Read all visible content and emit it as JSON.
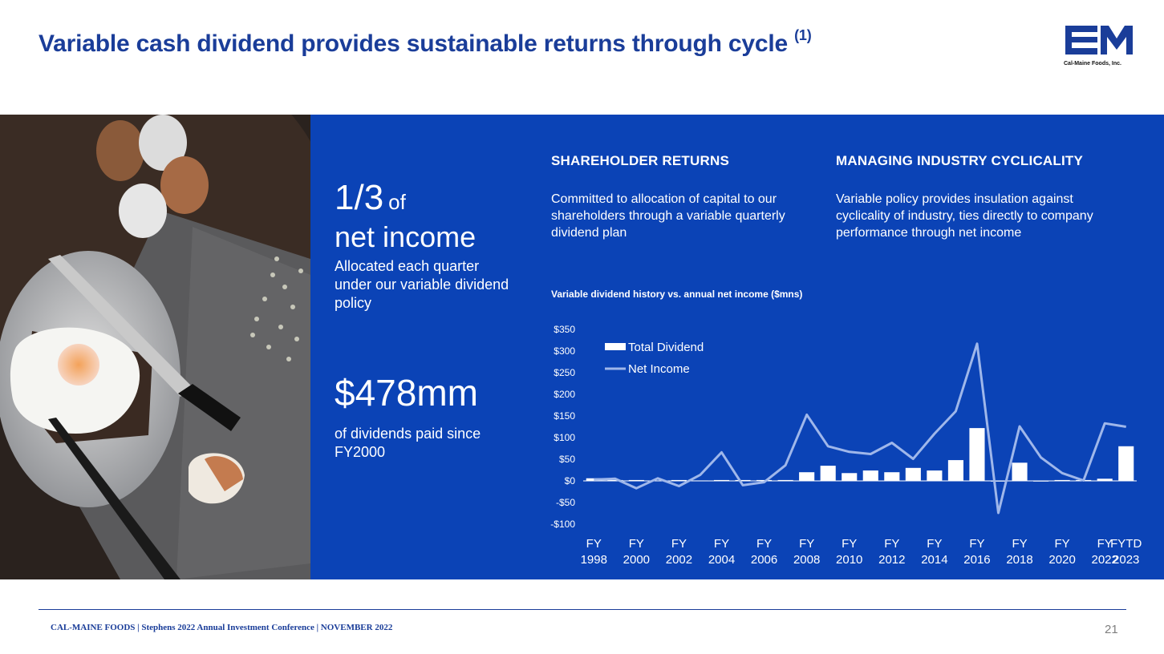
{
  "header": {
    "title": "Variable cash dividend provides sustainable returns through cycle",
    "title_sup": "(1)",
    "logo_caption": "Cal-Maine Foods, Inc."
  },
  "left_panel": {
    "stat1_value": "1/3",
    "stat1_of": "of",
    "stat1_line2": "net income",
    "stat1_caption": "Allocated each quarter under our variable dividend policy",
    "stat2_value": "$478mm",
    "stat2_caption": "of dividends paid since FY2000"
  },
  "columns": [
    {
      "heading": "SHAREHOLDER RETURNS",
      "body": "Committed to allocation of capital to our shareholders through a variable quarterly dividend plan"
    },
    {
      "heading": "MANAGING INDUSTRY CYCLICALITY",
      "body": "Variable policy provides insulation against cyclicality of industry, ties directly to company performance through net income"
    }
  ],
  "chart_data": {
    "type": "bar",
    "title": "Variable dividend history vs. annual net income ($mns)",
    "categories": [
      "FY1998",
      "FY1999",
      "FY2000",
      "FY2001",
      "FY2002",
      "FY2003",
      "FY2004",
      "FY2005",
      "FY2006",
      "FY2007",
      "FY2008",
      "FY2009",
      "FY2010",
      "FY2011",
      "FY2012",
      "FY2013",
      "FY2014",
      "FY2015",
      "FY2016",
      "FY2017",
      "FY2018",
      "FY2019",
      "FY2020",
      "FY2021",
      "FY2022",
      "FYTD2023"
    ],
    "x_tick_labels": [
      [
        "FY",
        "1998"
      ],
      [
        "FY",
        "2000"
      ],
      [
        "FY",
        "2002"
      ],
      [
        "FY",
        "2004"
      ],
      [
        "FY",
        "2006"
      ],
      [
        "FY",
        "2008"
      ],
      [
        "FY",
        "2010"
      ],
      [
        "FY",
        "2012"
      ],
      [
        "FY",
        "2014"
      ],
      [
        "FY",
        "2016"
      ],
      [
        "FY",
        "2018"
      ],
      [
        "FY",
        "2020"
      ],
      [
        "FY",
        "2022"
      ],
      [
        "FYTD",
        "2023"
      ]
    ],
    "x_tick_indices": [
      0,
      2,
      4,
      6,
      8,
      10,
      12,
      14,
      16,
      18,
      20,
      22,
      24,
      25
    ],
    "series": [
      {
        "name": "Total Dividend",
        "kind": "bar",
        "color": "#ffffff",
        "values": [
          6,
          2,
          2,
          1,
          2,
          1,
          2,
          2,
          2,
          2,
          20,
          35,
          18,
          24,
          20,
          30,
          24,
          48,
          122,
          0,
          42,
          0,
          2,
          2,
          5,
          80
        ]
      },
      {
        "name": "Net Income",
        "kind": "line",
        "color": "#9fb7ea",
        "values": [
          3,
          5,
          -17,
          6,
          -12,
          14,
          66,
          -10,
          -3,
          36,
          153,
          80,
          67,
          62,
          88,
          51,
          109,
          161,
          317,
          -74,
          126,
          54,
          18,
          1,
          133,
          125
        ]
      }
    ],
    "ylim": [
      -100,
      350
    ],
    "y_ticks": [
      -100,
      -50,
      0,
      50,
      100,
      150,
      200,
      250,
      300,
      350
    ],
    "y_tick_labels": [
      "-$100",
      "-$50",
      "$0",
      "$50",
      "$100",
      "$150",
      "$200",
      "$250",
      "$300",
      "$350"
    ],
    "legend": "top-left",
    "grid": false
  },
  "footer": {
    "text": "CAL-MAINE FOODS | Stephens 2022 Annual Investment Conference | NOVEMBER 2022",
    "page_number": "21"
  },
  "colors": {
    "brand_blue": "#1a3d99",
    "panel_blue": "#0b43b6",
    "line": "#9fb7ea"
  }
}
